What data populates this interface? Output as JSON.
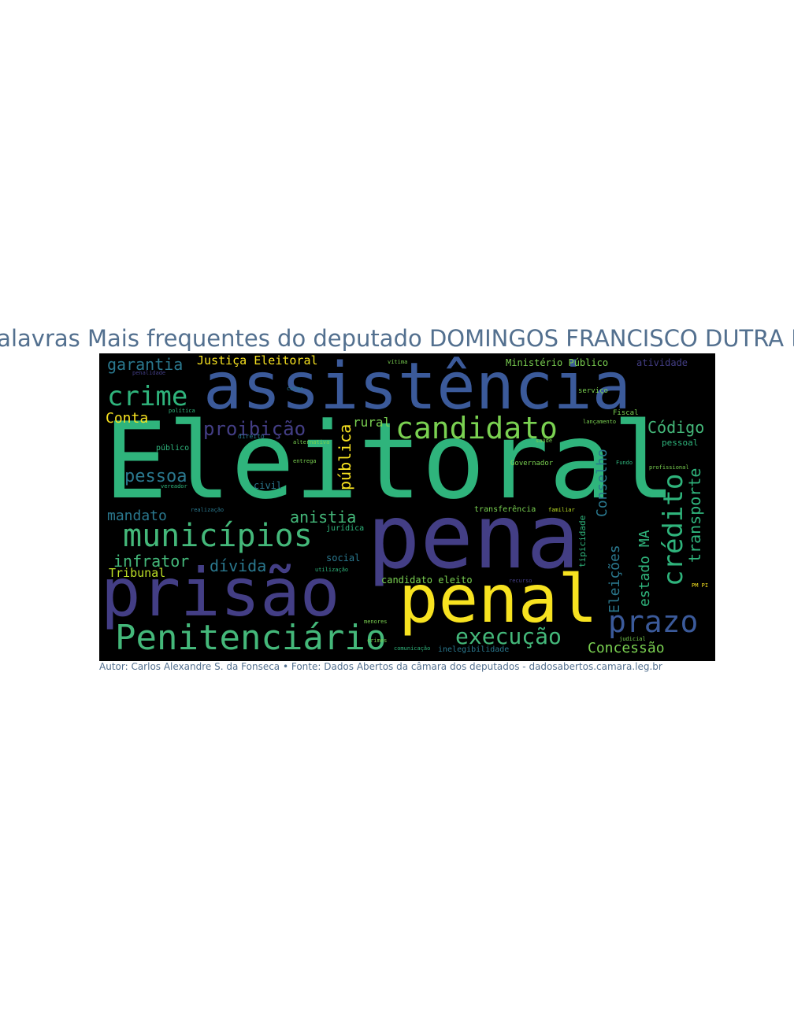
{
  "title": "Palavras Mais frequentes do deputado DOMINGOS FRANCISCO DUTRA FILHO",
  "caption": "Autor: Carlos Alexandre S. da Fonseca • Fonte: Dados Abertos da câmara dos deputados - dadosabertos.camara.leg.br",
  "colors": {
    "title": "#53708f",
    "background": "#000000",
    "palette": [
      "#2fb47c",
      "#3b5a9a",
      "#433e85",
      "#f7e220",
      "#2a788e",
      "#7ad151",
      "#44b87a",
      "#bddf26"
    ]
  },
  "words": {
    "eleitoral": "Eleitoral",
    "assistencia": "assistência",
    "pena": "pena",
    "prisao": "prisão",
    "penal": "penal",
    "penitenciario": "Penitenciário",
    "municipios": "municípios",
    "candidato": "candidato",
    "credito": "crédito",
    "prazo": "prazo",
    "crime": "crime",
    "execucao": "execução",
    "garantia": "garantia",
    "justica_eleitoral": "Justiça Eleitoral",
    "conta": "Conta",
    "proibicao": "proibição",
    "publica": "pública",
    "rural": "rural",
    "codigo": "Código",
    "pessoa": "pessoa",
    "mandato": "mandato",
    "anistia": "anistia",
    "infrator": "infrator",
    "divida": "dívida",
    "tribunal": "Tribunal",
    "conselho": "Conselho",
    "transporte": "transporte",
    "estado_ma": "estado MA",
    "eleicoes": "Eleições",
    "concessao": "Concessão",
    "ministerio_publico": "Ministério Público",
    "atividade": "atividade",
    "candidato_eleito": "candidato eleito",
    "social": "social",
    "juridica": "jurídica",
    "civil": "civil",
    "tipicidade": "tipicidade",
    "pessoal": "pessoal",
    "inelegibilidade": "inelegibilidade",
    "transferencia": "transferência",
    "publico": "público",
    "governador": "Governador",
    "servico": "serviço",
    "fiscal": "Fiscal",
    "profissional": "profissional",
    "direito": "direito",
    "alternativa": "alternativa",
    "vitima": "vítima",
    "vereador": "vereador",
    "familiar": "familiar",
    "politica": "política",
    "saude": "saúde",
    "fundo": "Fundo",
    "penalidade": "penalidade",
    "judicial": "judicial",
    "menores": "menores",
    "crimes": "crimes",
    "comunicacao": "comunicação",
    "utilizacao": "utilização",
    "recurso": "recurso",
    "realizacao": "realização",
    "lancamento": "lançamento",
    "entrega": "entrega",
    "cargo": "cargo",
    "pm_pi": "PM PI"
  }
}
